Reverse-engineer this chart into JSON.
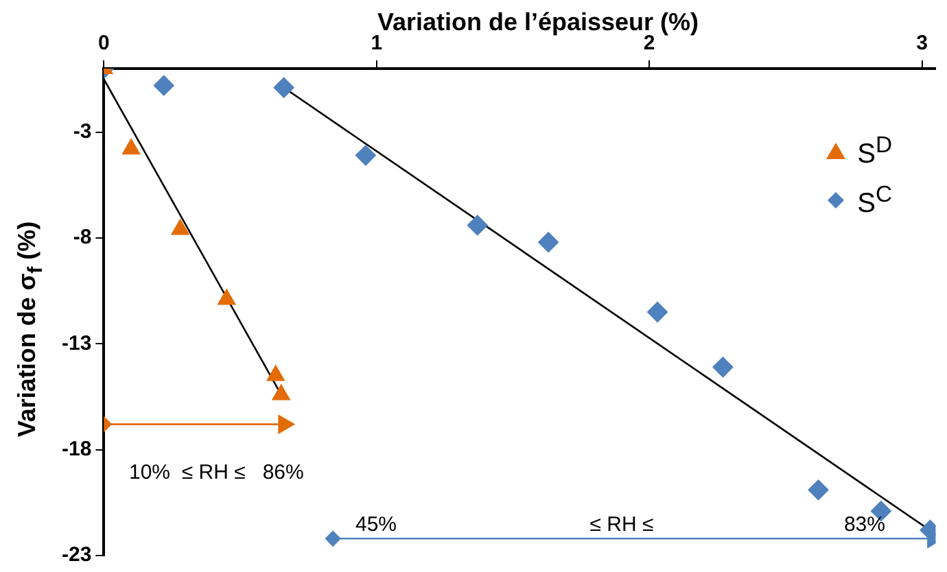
{
  "chart_data": {
    "type": "scatter",
    "xlabel": "Variation de l’épaisseur (%)",
    "ylabel": "Variation de σ$_{f}$ (%)",
    "xlim": [
      0,
      3.05
    ],
    "xticks": [
      0,
      1,
      2,
      3
    ],
    "ylim": [
      -23,
      0
    ],
    "yticks": [
      -23,
      -18,
      -13,
      -8,
      -3
    ],
    "grid": false,
    "legend": "top right",
    "series": [
      {
        "name": "S$^{D}$",
        "marker": "triangle",
        "color": "#e36c09",
        "x": [
          0,
          0.1,
          0.28,
          0.45,
          0.63,
          0.65
        ],
        "values": [
          0,
          -3.8,
          -7.6,
          -10.9,
          -14.5,
          -15.4
        ]
      },
      {
        "name": "S$^{C}$",
        "marker": "diamond",
        "color": "#4f81bd",
        "x": [
          0,
          0.22,
          0.66,
          0.96,
          1.37,
          1.63,
          2.03,
          2.27,
          2.62,
          2.85,
          3.03
        ],
        "values": [
          0,
          -0.8,
          -0.9,
          -4.1,
          -7.4,
          -8.2,
          -11.5,
          -14.1,
          -19.9,
          -20.9,
          -21.8
        ]
      },
      {
        "type": "line",
        "marker": "none",
        "color": "#000000",
        "x": [
          0,
          0.65
        ],
        "values": [
          -0.5,
          -15.4
        ]
      },
      {
        "type": "line",
        "marker": "none",
        "color": "#000000",
        "x": [
          0.66,
          3.04
        ],
        "values": [
          -0.9,
          -21.9
        ]
      },
      {
        "type": "line",
        "marker": "diamond",
        "color": "#e36c09",
        "x": [
          0,
          0.66
        ],
        "values": [
          -16.8,
          -16.8
        ]
      },
      {
        "type": "line",
        "marker": "diamond",
        "color": "#4f81bd",
        "x": [
          0.84,
          3.04
        ],
        "values": [
          -22.2,
          -22.2
        ]
      }
    ],
    "annotations": [
      "10%  ≤ RH ≤   86%",
      "45%",
      "≤ RH ≤",
      "83%"
    ]
  }
}
